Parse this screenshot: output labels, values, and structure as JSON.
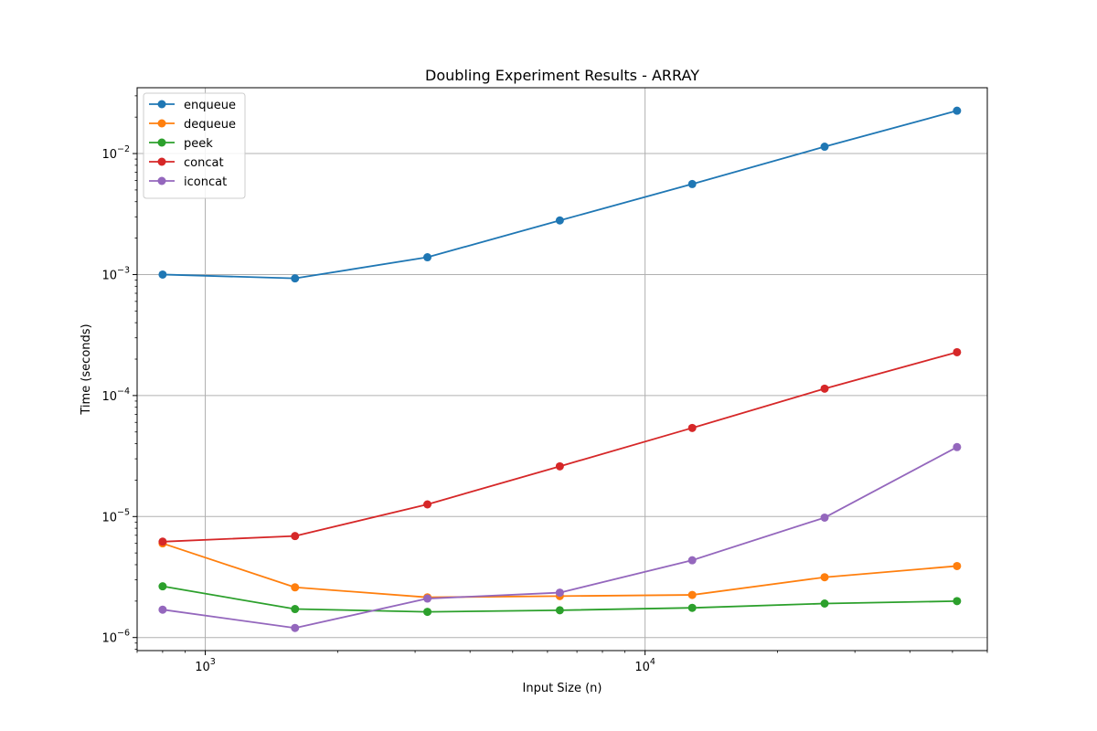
{
  "chart_data": {
    "type": "line",
    "title": "Doubling Experiment Results - ARRAY",
    "xlabel": "Input Size (n)",
    "ylabel": "Time (seconds)",
    "xscale": "log",
    "yscale": "log",
    "xlim": [
      700,
      60000
    ],
    "ylim": [
      7.8e-07,
      0.035
    ],
    "grid": true,
    "legend_position": "top-left",
    "x": [
      800,
      1600,
      3200,
      6400,
      12800,
      25600,
      51200
    ],
    "x_ticks": [
      {
        "value": 1000,
        "base": "10",
        "exp": "3"
      },
      {
        "value": 10000,
        "base": "10",
        "exp": "4"
      }
    ],
    "y_ticks": [
      {
        "value": 1e-06,
        "base": "10",
        "exp": "−6"
      },
      {
        "value": 1e-05,
        "base": "10",
        "exp": "−5"
      },
      {
        "value": 0.0001,
        "base": "10",
        "exp": "−4"
      },
      {
        "value": 0.001,
        "base": "10",
        "exp": "−3"
      },
      {
        "value": 0.01,
        "base": "10",
        "exp": "−2"
      }
    ],
    "series": [
      {
        "name": "enqueue",
        "color": "#1f77b4",
        "values": [
          0.001,
          0.00093,
          0.00139,
          0.0028,
          0.0056,
          0.0114,
          0.0226
        ]
      },
      {
        "name": "dequeue",
        "color": "#ff7f0e",
        "values": [
          6e-06,
          2.6e-06,
          2.15e-06,
          2.2e-06,
          2.25e-06,
          3.15e-06,
          3.9e-06
        ]
      },
      {
        "name": "peek",
        "color": "#2ca02c",
        "values": [
          2.65e-06,
          1.72e-06,
          1.63e-06,
          1.68e-06,
          1.76e-06,
          1.91e-06,
          2e-06
        ]
      },
      {
        "name": "concat",
        "color": "#d62728",
        "values": [
          6.2e-06,
          6.9e-06,
          1.26e-05,
          2.6e-05,
          5.4e-05,
          0.000114,
          0.000228
        ]
      },
      {
        "name": "iconcat",
        "color": "#9467bd",
        "values": [
          1.7e-06,
          1.2e-06,
          2.1e-06,
          2.35e-06,
          4.35e-06,
          9.8e-06,
          3.75e-05
        ]
      }
    ]
  }
}
